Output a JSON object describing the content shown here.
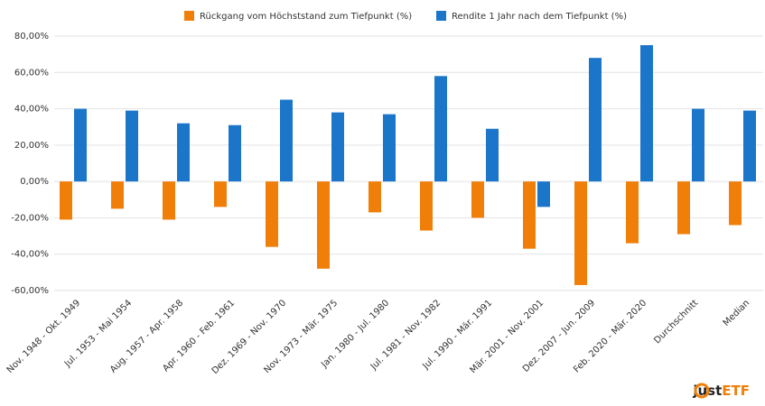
{
  "chart_data": {
    "type": "bar",
    "categories": [
      "Nov. 1948 - Okt. 1949",
      "Jul. 1953 - Mai 1954",
      "Aug. 1957 - Apr. 1958",
      "Apr. 1960 - Feb. 1961",
      "Dez. 1969 - Nov. 1970",
      "Nov. 1973 - Mär. 1975",
      "Jan. 1980 - Jul. 1980",
      "Jul. 1981 - Nov. 1982",
      "Jul. 1990 - Mär. 1991",
      "Mär. 2001 - Nov. 2001",
      "Dez. 2007 - Jun. 2009",
      "Feb. 2020 - Mär. 2020",
      "Durchschnitt",
      "Median"
    ],
    "series": [
      {
        "name": "Rückgang vom Höchststand zum Tiefpunkt (%)",
        "color": "#f07f09",
        "values": [
          -21,
          -15,
          -21,
          -14,
          -36,
          -48,
          -17,
          -27,
          -20,
          -37,
          -57,
          -34,
          -29,
          -24
        ]
      },
      {
        "name": "Rendite 1 Jahr nach dem Tiefpunkt (%)",
        "color": "#1b75c9",
        "values": [
          40,
          39,
          32,
          31,
          45,
          38,
          37,
          58,
          29,
          -14,
          68,
          75,
          40,
          39
        ]
      }
    ],
    "ylim": [
      -60,
      80
    ],
    "yticks": [
      {
        "value": -60,
        "label": "-60,00%"
      },
      {
        "value": -40,
        "label": "-40,00%"
      },
      {
        "value": -20,
        "label": "-20,00%"
      },
      {
        "value": 0,
        "label": "0,00%"
      },
      {
        "value": 20,
        "label": "20,00%"
      },
      {
        "value": 40,
        "label": "40,00%"
      },
      {
        "value": 60,
        "label": "60,00%"
      },
      {
        "value": 80,
        "label": "80,00%"
      }
    ],
    "grid": true,
    "legend": "top"
  },
  "brand": {
    "prefix": "just",
    "suffix": "ETF"
  }
}
